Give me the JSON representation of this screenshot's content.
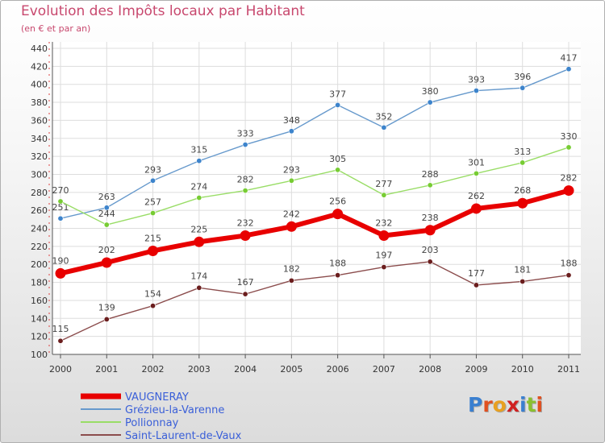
{
  "title": "Evolution des Impôts locaux par Habitant",
  "subtitle": "(en € et par an)",
  "logo_text": "Proxiti",
  "chart_data": {
    "type": "line",
    "x": [
      2000,
      2001,
      2002,
      2003,
      2004,
      2005,
      2006,
      2007,
      2008,
      2009,
      2010,
      2011
    ],
    "ylim": [
      100,
      440
    ],
    "yticks": [
      100,
      120,
      140,
      160,
      180,
      200,
      220,
      240,
      260,
      280,
      300,
      320,
      340,
      360,
      380,
      400,
      420,
      440
    ],
    "grid": true,
    "legend": "bottom-left",
    "series": [
      {
        "name": "VAUGNERAY",
        "color": "#e80000",
        "bold": true,
        "values": [
          190,
          202,
          215,
          225,
          232,
          242,
          256,
          232,
          238,
          262,
          268,
          282
        ]
      },
      {
        "name": "Grézieu-la-Varenne",
        "color": "#6699cc",
        "marker": "#3d84cc",
        "values": [
          251,
          263,
          293,
          315,
          333,
          348,
          377,
          352,
          380,
          393,
          396,
          417
        ]
      },
      {
        "name": "Pollionnay",
        "color": "#99dd66",
        "marker": "#77cc33",
        "values": [
          270,
          244,
          257,
          274,
          282,
          293,
          305,
          277,
          288,
          301,
          313,
          330
        ]
      },
      {
        "name": "Saint-Laurent-de-Vaux",
        "color": "#8b4c4c",
        "marker": "#6b1e1e",
        "values": [
          115,
          139,
          154,
          174,
          167,
          182,
          188,
          197,
          203,
          177,
          181,
          188
        ]
      }
    ]
  }
}
